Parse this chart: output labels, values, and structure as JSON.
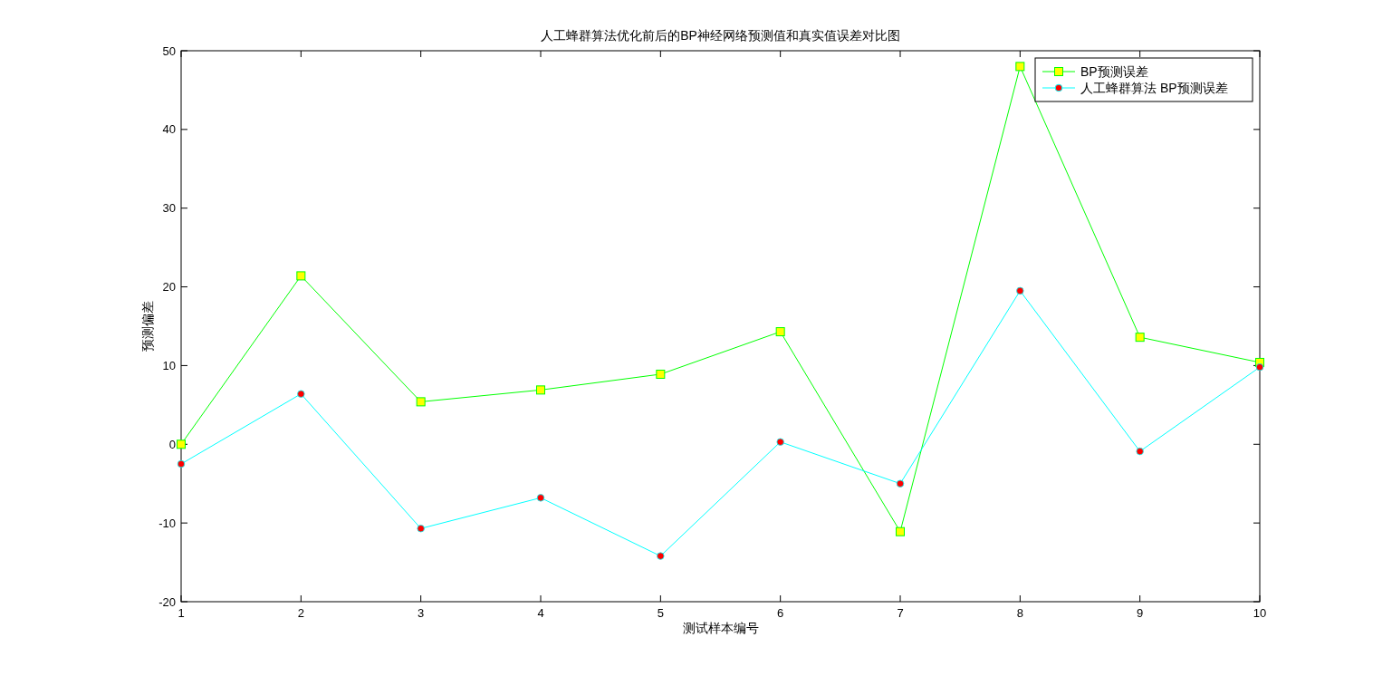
{
  "chart_data": {
    "type": "line",
    "title": "人工蜂群算法优化前后的BP神经网络预测值和真实值误差对比图",
    "xlabel": "测试样本编号",
    "ylabel": "预测偏差",
    "x": [
      1,
      2,
      3,
      4,
      5,
      6,
      7,
      8,
      9,
      10
    ],
    "xlim": [
      1,
      10
    ],
    "xticks": [
      1,
      2,
      3,
      4,
      5,
      6,
      7,
      8,
      9,
      10
    ],
    "ylim": [
      -20,
      50
    ],
    "yticks": [
      -20,
      -10,
      0,
      10,
      20,
      30,
      40,
      50
    ],
    "grid": false,
    "legend": "top right",
    "line_style": "solid",
    "series": [
      {
        "name": "BP预测误差",
        "color": "#00ff00",
        "marker": "square",
        "colors": [
          "#ffff00",
          "#ffff00",
          "#ffff00",
          "#ffff00",
          "#ffff00",
          "#ffff00",
          "#ffff00",
          "#ffff00",
          "#ffff00",
          "#ffff00"
        ],
        "values": [
          0,
          21.4,
          5.4,
          6.9,
          8.9,
          14.3,
          -11.1,
          48.0,
          13.6,
          10.4
        ]
      },
      {
        "name": "人工蜂群算法 BP预测误差",
        "color": "#00ffff",
        "marker": "circle",
        "colors": [
          "#ff0000",
          "#ff0000",
          "#ff0000",
          "#ff0000",
          "#ff0000",
          "#ff0000",
          "#ff0000",
          "#ff0000",
          "#ff0000",
          "#ff0000"
        ],
        "values": [
          -2.5,
          6.4,
          -10.7,
          -6.8,
          -14.2,
          0.3,
          -5.0,
          19.5,
          -0.9,
          9.8
        ]
      }
    ]
  }
}
